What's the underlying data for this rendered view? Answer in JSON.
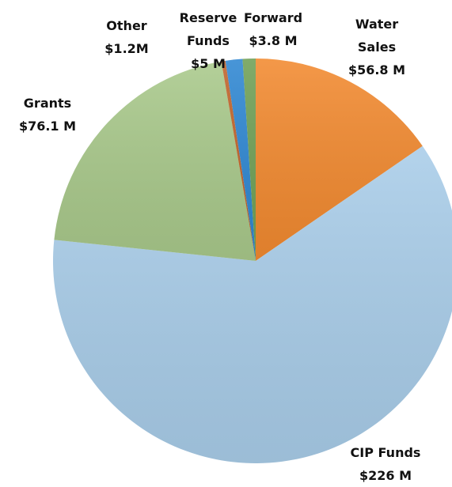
{
  "chart_data": {
    "type": "pie",
    "categories": [
      "Water Sales",
      "CIP Funds",
      "Grants",
      "Other",
      "Reserve Funds",
      "Forward"
    ],
    "values": [
      56.8,
      226,
      76.1,
      1.2,
      5,
      3.8
    ],
    "value_labels": [
      "$56.8 M",
      "$226 M",
      "$76.1 M",
      "$1.2M",
      "$5 M",
      "$3.8 M"
    ],
    "colors": [
      "#f28a30",
      "#a9cde9",
      "#a9c98b",
      "#c0632a",
      "#2f87d2",
      "#70a056"
    ]
  }
}
